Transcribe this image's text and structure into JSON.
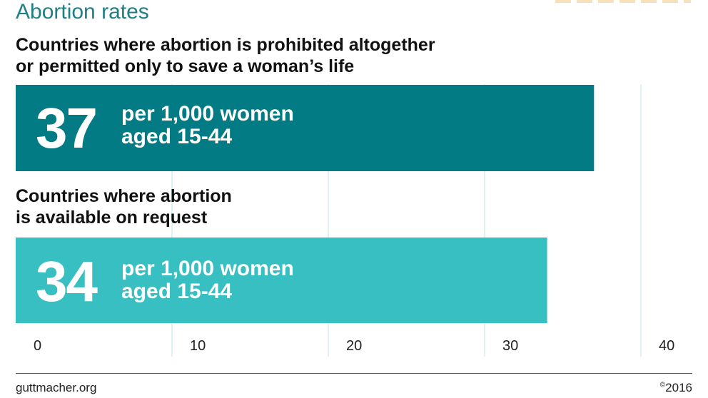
{
  "title": "Abortion rates",
  "colors": {
    "title": "#1f7f86",
    "bar_dark": "#037b85",
    "bar_light": "#38bfc2",
    "grid": "#dff2f2"
  },
  "chart_data": {
    "type": "bar",
    "orientation": "horizontal",
    "xlim": [
      0,
      40
    ],
    "xticks": [
      "0",
      "10",
      "20",
      "30",
      "40"
    ],
    "grid": true,
    "categories": [
      "Countries where abortion is prohibited altogether or permitted only to save a woman’s life",
      "Countries where abortion is available on request"
    ],
    "values": [
      37,
      34
    ],
    "bars": [
      {
        "label_lines": [
          "Countries where abortion is prohibited altogether",
          "or permitted only to save a woman’s life"
        ],
        "value": 37,
        "value_text": "37",
        "unit_lines": [
          "per 1,000 women",
          "aged 15-44"
        ],
        "color": "#037b85"
      },
      {
        "label_lines": [
          "Countries where abortion",
          "is available on request"
        ],
        "value": 34,
        "value_text": "34",
        "unit_lines": [
          "per 1,000 women",
          "aged 15-44"
        ],
        "color": "#38bfc2"
      }
    ]
  },
  "footer": {
    "source": "guttmacher.org",
    "copyright_symbol": "©",
    "year": "2016"
  }
}
